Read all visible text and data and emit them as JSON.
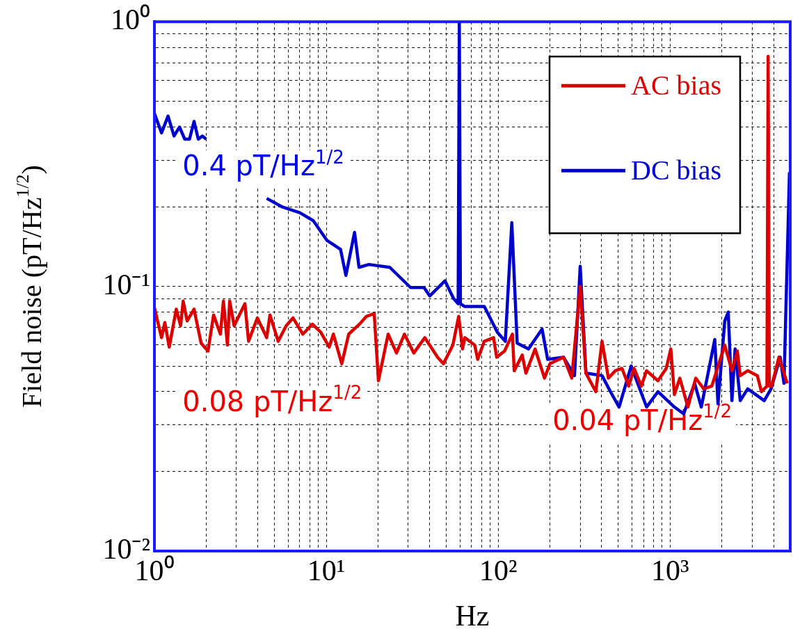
{
  "chart_data": {
    "type": "line",
    "xlabel": "Hz",
    "ylabel": "Field noise (pT/Hz$^{1/2}$)",
    "log": "xy",
    "grid": true,
    "legend": "top right",
    "line_style": "solid",
    "marker": "none",
    "xlim": [
      1,
      5000
    ],
    "ylim": [
      0.01,
      1
    ],
    "xticks": [
      {
        "value": 1,
        "label": "10⁰"
      },
      {
        "value": 2,
        "label": null
      },
      {
        "value": 3,
        "label": null
      },
      {
        "value": 4,
        "label": null
      },
      {
        "value": 5,
        "label": null
      },
      {
        "value": 6,
        "label": null
      },
      {
        "value": 7,
        "label": null
      },
      {
        "value": 8,
        "label": null
      },
      {
        "value": 9,
        "label": null
      },
      {
        "value": 10,
        "label": "10¹"
      },
      {
        "value": 20,
        "label": null
      },
      {
        "value": 30,
        "label": null
      },
      {
        "value": 40,
        "label": null
      },
      {
        "value": 50,
        "label": null
      },
      {
        "value": 60,
        "label": null
      },
      {
        "value": 70,
        "label": null
      },
      {
        "value": 80,
        "label": null
      },
      {
        "value": 90,
        "label": null
      },
      {
        "value": 100,
        "label": "10²"
      },
      {
        "value": 200,
        "label": null
      },
      {
        "value": 300,
        "label": null
      },
      {
        "value": 400,
        "label": null
      },
      {
        "value": 500,
        "label": null
      },
      {
        "value": 600,
        "label": null
      },
      {
        "value": 700,
        "label": null
      },
      {
        "value": 800,
        "label": null
      },
      {
        "value": 900,
        "label": null
      },
      {
        "value": 1000,
        "label": "10³"
      },
      {
        "value": 2000,
        "label": null
      },
      {
        "value": 3000,
        "label": null
      },
      {
        "value": 4000,
        "label": null
      }
    ],
    "yticks": [
      {
        "value": 0.01,
        "label": "10⁻²"
      },
      {
        "value": 0.02,
        "label": null
      },
      {
        "value": 0.03,
        "label": null
      },
      {
        "value": 0.04,
        "label": null
      },
      {
        "value": 0.05,
        "label": null
      },
      {
        "value": 0.06,
        "label": null
      },
      {
        "value": 0.07,
        "label": null
      },
      {
        "value": 0.08,
        "label": null
      },
      {
        "value": 0.09,
        "label": null
      },
      {
        "value": 0.1,
        "label": "10⁻¹"
      },
      {
        "value": 0.2,
        "label": null
      },
      {
        "value": 0.3,
        "label": null
      },
      {
        "value": 0.4,
        "label": null
      },
      {
        "value": 0.5,
        "label": null
      },
      {
        "value": 0.6,
        "label": null
      },
      {
        "value": 0.7,
        "label": null
      },
      {
        "value": 0.8,
        "label": null
      },
      {
        "value": 0.9,
        "label": null
      },
      {
        "value": 1,
        "label": "10⁰"
      }
    ],
    "series": [
      {
        "name": "AC bias",
        "color": "#dd0000",
        "x": [
          1,
          1.1,
          1.15,
          1.22,
          1.34,
          1.42,
          1.47,
          1.55,
          1.7,
          1.87,
          2.05,
          2.21,
          2.42,
          2.52,
          2.66,
          2.74,
          2.91,
          3.36,
          3.53,
          3.97,
          4.5,
          4.7,
          5.25,
          5.84,
          6.4,
          7.3,
          8.3,
          9.3,
          10.4,
          11,
          12.3,
          13.5,
          15.6,
          17.1,
          19,
          20.1,
          22.9,
          25.6,
          28.5,
          32.3,
          37.4,
          44.4,
          48,
          54.5,
          58.9,
          62,
          64,
          73,
          76,
          83,
          94,
          98,
          109,
          121,
          124,
          138,
          145,
          164,
          186,
          200,
          240,
          268,
          300,
          324,
          370,
          402,
          438,
          480,
          525,
          575,
          617,
          680,
          730,
          850,
          950,
          1010,
          1060,
          1140,
          1270,
          1410,
          1570,
          1750,
          2080,
          2290,
          2460,
          2560,
          2830,
          3220,
          3400,
          3660,
          3720,
          3780,
          3900,
          4300,
          4800
        ],
        "values": [
          0.083,
          0.064,
          0.073,
          0.059,
          0.082,
          0.071,
          0.088,
          0.074,
          0.082,
          0.061,
          0.057,
          0.078,
          0.066,
          0.088,
          0.06,
          0.088,
          0.071,
          0.086,
          0.062,
          0.076,
          0.064,
          0.078,
          0.062,
          0.071,
          0.076,
          0.066,
          0.072,
          0.067,
          0.059,
          0.066,
          0.051,
          0.066,
          0.072,
          0.077,
          0.079,
          0.044,
          0.066,
          0.056,
          0.066,
          0.056,
          0.064,
          0.054,
          0.051,
          0.06,
          0.077,
          0.058,
          0.064,
          0.06,
          0.053,
          0.062,
          0.064,
          0.054,
          0.057,
          0.066,
          0.048,
          0.055,
          0.047,
          0.058,
          0.045,
          0.051,
          0.054,
          0.045,
          0.1,
          0.047,
          0.04,
          0.062,
          0.045,
          0.048,
          0.049,
          0.042,
          0.049,
          0.042,
          0.048,
          0.044,
          0.049,
          0.058,
          0.039,
          0.045,
          0.035,
          0.045,
          0.041,
          0.042,
          0.06,
          0.048,
          0.057,
          0.046,
          0.048,
          0.046,
          0.04,
          0.042,
          0.74,
          0.042,
          0.042,
          0.054,
          0.043
        ]
      },
      {
        "name": "DC bias",
        "color": "#0000cc",
        "x": [
          1,
          1.1,
          1.2,
          1.3,
          1.4,
          1.5,
          1.6,
          1.7,
          1.8,
          1.9,
          2,
          3,
          4.5,
          5.5,
          7,
          8.4,
          10.1,
          12.1,
          13,
          14.6,
          15.5,
          17.7,
          23.4,
          30.9,
          37,
          40,
          49,
          55,
          58.5,
          59.4,
          60.3,
          63.7,
          83,
          99,
          110,
          120,
          129,
          150,
          180,
          194,
          240,
          278,
          300,
          324,
          402,
          450,
          505,
          594,
          730,
          850,
          1060,
          1200,
          1390,
          1520,
          1820,
          1900,
          2080,
          2180,
          2290,
          2390,
          2560,
          2830,
          3530,
          3870,
          4370,
          4600,
          4950
        ],
        "values": [
          0.45,
          0.38,
          0.44,
          0.37,
          0.4,
          0.36,
          0.36,
          0.42,
          0.36,
          0.37,
          0.36,
          null,
          0.215,
          0.2,
          0.19,
          0.177,
          0.149,
          0.138,
          0.11,
          0.16,
          0.118,
          0.121,
          0.118,
          0.099,
          0.099,
          0.092,
          0.105,
          0.09,
          0.086,
          1,
          0.086,
          0.084,
          0.084,
          0.067,
          0.062,
          0.174,
          0.061,
          0.058,
          0.069,
          0.053,
          0.054,
          0.046,
          0.119,
          0.047,
          0.046,
          0.04,
          0.035,
          0.05,
          0.035,
          0.04,
          0.035,
          0.033,
          0.043,
          0.035,
          0.063,
          0.036,
          0.074,
          0.08,
          0.037,
          0.058,
          0.037,
          0.041,
          0.037,
          0.041,
          0.054,
          0.043,
          0.27
        ]
      }
    ],
    "annotations": [
      "0.4 pT/Hz$^{1/2}$",
      "0.08 pT/Hz$^{1/2}$",
      "0.04 pT/Hz$^{1/2}$"
    ]
  }
}
